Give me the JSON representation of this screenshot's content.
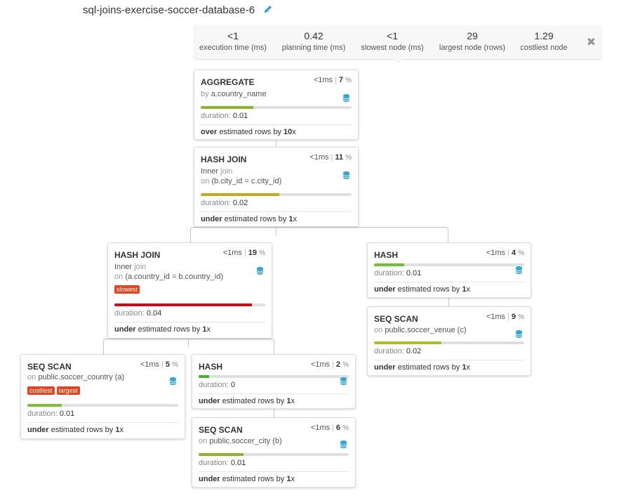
{
  "title": "sql-joins-exercise-soccer-database-6",
  "stats": [
    {
      "value": "<1",
      "label": "execution time (ms)"
    },
    {
      "value": "0.42",
      "label": "planning time (ms)"
    },
    {
      "value": "<1",
      "label": "slowest node (ms)"
    },
    {
      "value": "29",
      "label": "largest node (rows)"
    },
    {
      "value": "1.29",
      "label": "costliest node"
    }
  ],
  "close_symbol": "✖",
  "nodes": {
    "aggregate": {
      "name": "AGGREGATE",
      "time": "<1",
      "time_unit": "ms",
      "pct": "7",
      "pct_sym": "%",
      "line1_gray": "by",
      "line1": "a.country_name",
      "duration_label": "duration:",
      "duration": "0.01",
      "est_pre": "over",
      "est_mid": "estimated rows by",
      "est_val": "10",
      "est_x": "x",
      "bar_pct": 35,
      "bar_color": "#8ab527"
    },
    "hashjoin1": {
      "name": "HASH JOIN",
      "time": "<1",
      "time_unit": "ms",
      "pct": "11",
      "pct_sym": "%",
      "line1": "Inner",
      "line1_gray": "join",
      "line2_gray": "on",
      "line2": "(b.city_id = c.city_id)",
      "duration_label": "duration:",
      "duration": "0.02",
      "est_pre": "under",
      "est_mid": "estimated rows by",
      "est_val": "1",
      "est_x": "x",
      "bar_pct": 52,
      "bar_color": "#c4a91b"
    },
    "hashjoin2": {
      "name": "HASH JOIN",
      "time": "<1",
      "time_unit": "ms",
      "pct": "19",
      "pct_sym": "%",
      "line1": "Inner",
      "line1_gray": "join",
      "line2_gray": "on",
      "line2": "(a.country_id = b.country_id)",
      "tags": [
        "slowest"
      ],
      "duration_label": "duration:",
      "duration": "0.04",
      "est_pre": "under",
      "est_mid": "estimated rows by",
      "est_val": "1",
      "est_x": "x",
      "bar_pct": 91,
      "bar_color": "#c0101a"
    },
    "hash_right": {
      "name": "HASH",
      "time": "<1",
      "time_unit": "ms",
      "pct": "4",
      "pct_sym": "%",
      "duration_label": "duration:",
      "duration": "0.01",
      "est_pre": "under",
      "est_mid": "estimated rows by",
      "est_val": "1",
      "est_x": "x",
      "bar_pct": 20,
      "bar_color": "#6fc02a"
    },
    "seq_venue": {
      "name": "SEQ SCAN",
      "time": "<1",
      "time_unit": "ms",
      "pct": "9",
      "pct_sym": "%",
      "line1_gray": "on",
      "line1": "public.soccer_venue (c)",
      "duration_label": "duration:",
      "duration": "0.02",
      "est_pre": "under",
      "est_mid": "estimated rows by",
      "est_val": "1",
      "est_x": "x",
      "bar_pct": 45,
      "bar_color": "#b4bf1e"
    },
    "seq_country": {
      "name": "SEQ SCAN",
      "time": "<1",
      "time_unit": "ms",
      "pct": "5",
      "pct_sym": "%",
      "line1_gray": "on",
      "line1": "public.soccer_country (a)",
      "tags": [
        "costliest",
        "largest"
      ],
      "duration_label": "duration:",
      "duration": "0.01",
      "est_pre": "under",
      "est_mid": "estimated rows by",
      "est_val": "1",
      "est_x": "x",
      "bar_pct": 23,
      "bar_color": "#7cc02a"
    },
    "hash_mid": {
      "name": "HASH",
      "time": "<1",
      "time_unit": "ms",
      "pct": "2",
      "pct_sym": "%",
      "duration_label": "duration:",
      "duration": "0",
      "est_pre": "under",
      "est_mid": "estimated rows by",
      "est_val": "1",
      "est_x": "x",
      "bar_pct": 7,
      "bar_color": "#3fb52a"
    },
    "seq_city": {
      "name": "SEQ SCAN",
      "time": "<1",
      "time_unit": "ms",
      "pct": "6",
      "pct_sym": "%",
      "line1_gray": "on",
      "line1": "public.soccer_city (b)",
      "duration_label": "duration:",
      "duration": "0.01",
      "est_pre": "under",
      "est_mid": "estimated rows by",
      "est_val": "1",
      "est_x": "x",
      "bar_pct": 30,
      "bar_color": "#8ab527"
    }
  },
  "icons": {
    "edit": "pencil-icon",
    "db": "database-icon",
    "close": "close-icon"
  },
  "colors": {
    "accent": "#2fa4d7",
    "tag": "#e8431e"
  }
}
